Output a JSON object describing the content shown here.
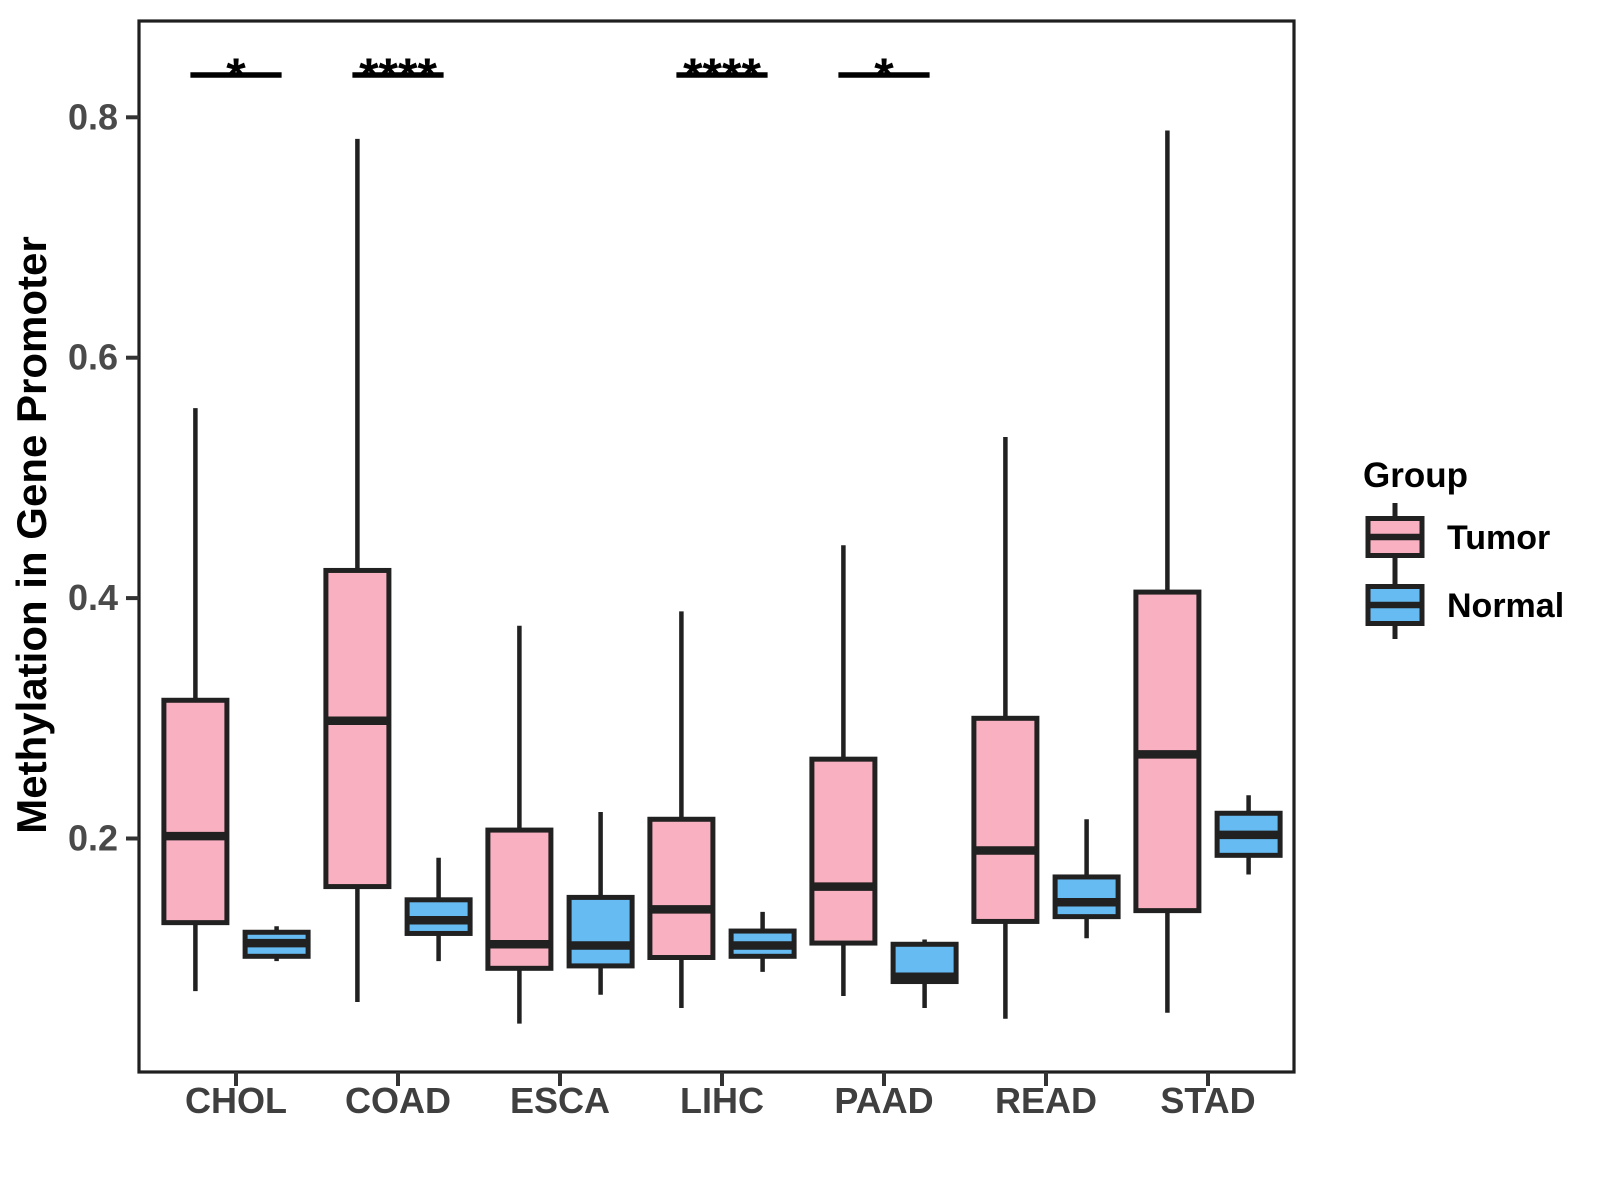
{
  "chart_data": {
    "type": "grouped_boxplot",
    "title": "",
    "ylabel": "Methylation in Gene Promoter",
    "xlabel": "",
    "categories": [
      "CHOL",
      "COAD",
      "ESCA",
      "LIHC",
      "PAAD",
      "READ",
      "STAD"
    ],
    "groups": [
      {
        "name": "Tumor",
        "color": "#F9B1C1"
      },
      {
        "name": "Normal",
        "color": "#67BBF3"
      }
    ],
    "legend": {
      "title": "Group",
      "position": "right"
    },
    "y_axis": {
      "ticks": [
        0.2,
        0.4,
        0.6,
        0.8
      ],
      "tick_labels": [
        "0.2",
        "0.4",
        "0.6",
        "0.8"
      ],
      "range": [
        0.005,
        0.878
      ],
      "grid": false
    },
    "boxes": [
      {
        "category": "CHOL",
        "series": [
          {
            "group": "Tumor",
            "whisker_low": 0.073,
            "q1": 0.13,
            "median": 0.202,
            "q3": 0.315,
            "whisker_high": 0.558
          },
          {
            "group": "Normal",
            "whisker_low": 0.098,
            "q1": 0.102,
            "median": 0.113,
            "q3": 0.122,
            "whisker_high": 0.127
          }
        ]
      },
      {
        "category": "COAD",
        "series": [
          {
            "group": "Tumor",
            "whisker_low": 0.064,
            "q1": 0.16,
            "median": 0.298,
            "q3": 0.423,
            "whisker_high": 0.782
          },
          {
            "group": "Normal",
            "whisker_low": 0.098,
            "q1": 0.121,
            "median": 0.132,
            "q3": 0.149,
            "whisker_high": 0.184
          }
        ]
      },
      {
        "category": "ESCA",
        "series": [
          {
            "group": "Tumor",
            "whisker_low": 0.046,
            "q1": 0.092,
            "median": 0.112,
            "q3": 0.207,
            "whisker_high": 0.377
          },
          {
            "group": "Normal",
            "whisker_low": 0.07,
            "q1": 0.094,
            "median": 0.111,
            "q3": 0.151,
            "whisker_high": 0.222
          }
        ]
      },
      {
        "category": "LIHC",
        "series": [
          {
            "group": "Tumor",
            "whisker_low": 0.059,
            "q1": 0.101,
            "median": 0.141,
            "q3": 0.216,
            "whisker_high": 0.389
          },
          {
            "group": "Normal",
            "whisker_low": 0.089,
            "q1": 0.102,
            "median": 0.111,
            "q3": 0.123,
            "whisker_high": 0.139
          }
        ]
      },
      {
        "category": "PAAD",
        "series": [
          {
            "group": "Tumor",
            "whisker_low": 0.069,
            "q1": 0.113,
            "median": 0.16,
            "q3": 0.266,
            "whisker_high": 0.444
          },
          {
            "group": "Normal",
            "whisker_low": 0.059,
            "q1": 0.081,
            "median": 0.085,
            "q3": 0.112,
            "whisker_high": 0.116
          }
        ]
      },
      {
        "category": "READ",
        "series": [
          {
            "group": "Tumor",
            "whisker_low": 0.05,
            "q1": 0.131,
            "median": 0.19,
            "q3": 0.3,
            "whisker_high": 0.534
          },
          {
            "group": "Normal",
            "whisker_low": 0.117,
            "q1": 0.135,
            "median": 0.147,
            "q3": 0.168,
            "whisker_high": 0.216
          }
        ]
      },
      {
        "category": "STAD",
        "series": [
          {
            "group": "Tumor",
            "whisker_low": 0.055,
            "q1": 0.14,
            "median": 0.27,
            "q3": 0.405,
            "whisker_high": 0.789
          },
          {
            "group": "Normal",
            "whisker_low": 0.17,
            "q1": 0.186,
            "median": 0.203,
            "q3": 0.221,
            "whisker_high": 0.236
          }
        ]
      }
    ],
    "significance": [
      {
        "category": "CHOL",
        "label": "*"
      },
      {
        "category": "COAD",
        "label": "****"
      },
      {
        "category": "LIHC",
        "label": "****"
      },
      {
        "category": "PAAD",
        "label": "*"
      }
    ],
    "style_colors": {
      "line": "#212121",
      "panel_border": "#1f1f1f",
      "tick_label": "#4a4a4a",
      "x_label": "#3f3f3f",
      "axis_title": "#000000"
    }
  }
}
